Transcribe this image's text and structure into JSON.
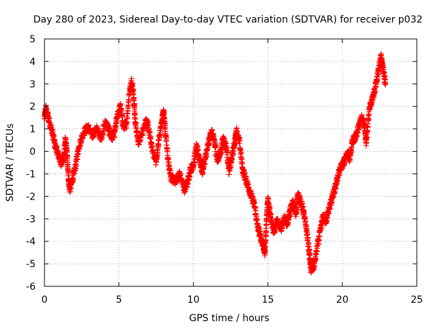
{
  "chart_data": {
    "type": "scatter",
    "title": "Day 280 of 2023, Sidereal Day-to-day VTEC variation (SDTVAR) for receiver p032",
    "xlabel": "GPS time / hours",
    "ylabel": "SDTVAR / TECUs",
    "xlim": [
      0,
      25
    ],
    "ylim": [
      -6,
      5
    ],
    "xticks": [
      0,
      5,
      10,
      15,
      20,
      25
    ],
    "yticks": [
      -6,
      -5,
      -4,
      -3,
      -2,
      -1,
      0,
      1,
      2,
      3,
      4,
      5
    ],
    "grid": true,
    "marker": "+",
    "series": [
      {
        "name": "SDTVAR",
        "color": "#ff0000",
        "trace_anchors": [
          [
            0.0,
            1.5
          ],
          [
            0.1,
            1.9
          ],
          [
            0.3,
            1.4
          ],
          [
            0.5,
            0.9
          ],
          [
            0.7,
            0.3
          ],
          [
            0.9,
            -0.1
          ],
          [
            1.1,
            -0.5
          ],
          [
            1.3,
            -0.3
          ],
          [
            1.4,
            0.5
          ],
          [
            1.5,
            0.0
          ],
          [
            1.6,
            -1.1
          ],
          [
            1.7,
            -1.7
          ],
          [
            1.9,
            -1.2
          ],
          [
            2.1,
            -0.6
          ],
          [
            2.3,
            0.2
          ],
          [
            2.6,
            0.8
          ],
          [
            2.9,
            1.1
          ],
          [
            3.2,
            0.7
          ],
          [
            3.5,
            1.0
          ],
          [
            3.8,
            0.6
          ],
          [
            4.1,
            1.3
          ],
          [
            4.3,
            1.0
          ],
          [
            4.5,
            0.6
          ],
          [
            4.7,
            0.8
          ],
          [
            4.9,
            1.6
          ],
          [
            5.1,
            2.0
          ],
          [
            5.3,
            1.1
          ],
          [
            5.5,
            1.2
          ],
          [
            5.7,
            2.6
          ],
          [
            5.85,
            3.1
          ],
          [
            6.0,
            2.4
          ],
          [
            6.1,
            1.3
          ],
          [
            6.3,
            0.4
          ],
          [
            6.5,
            0.7
          ],
          [
            6.8,
            1.4
          ],
          [
            7.0,
            1.0
          ],
          [
            7.2,
            0.2
          ],
          [
            7.5,
            -0.5
          ],
          [
            7.7,
            0.6
          ],
          [
            7.9,
            1.4
          ],
          [
            8.0,
            1.8
          ],
          [
            8.1,
            1.0
          ],
          [
            8.3,
            -0.4
          ],
          [
            8.5,
            -1.2
          ],
          [
            8.8,
            -1.3
          ],
          [
            9.1,
            -1.0
          ],
          [
            9.4,
            -1.7
          ],
          [
            9.6,
            -1.4
          ],
          [
            9.8,
            -0.8
          ],
          [
            10.0,
            -0.6
          ],
          [
            10.2,
            0.2
          ],
          [
            10.4,
            -0.3
          ],
          [
            10.6,
            -0.9
          ],
          [
            10.8,
            -0.3
          ],
          [
            11.0,
            0.3
          ],
          [
            11.2,
            0.9
          ],
          [
            11.4,
            0.5
          ],
          [
            11.6,
            -0.4
          ],
          [
            11.8,
            -0.1
          ],
          [
            12.0,
            0.6
          ],
          [
            12.2,
            0.2
          ],
          [
            12.4,
            -0.9
          ],
          [
            12.6,
            -0.2
          ],
          [
            12.8,
            0.5
          ],
          [
            12.9,
            0.9
          ],
          [
            13.1,
            0.4
          ],
          [
            13.3,
            -0.8
          ],
          [
            13.5,
            -1.2
          ],
          [
            13.7,
            -1.6
          ],
          [
            13.9,
            -2.0
          ],
          [
            14.1,
            -2.4
          ],
          [
            14.3,
            -3.3
          ],
          [
            14.5,
            -3.8
          ],
          [
            14.7,
            -4.2
          ],
          [
            14.8,
            -4.5
          ],
          [
            14.9,
            -3.2
          ],
          [
            15.0,
            -2.1
          ],
          [
            15.2,
            -2.9
          ],
          [
            15.4,
            -3.6
          ],
          [
            15.6,
            -3.1
          ],
          [
            15.9,
            -3.4
          ],
          [
            16.1,
            -3.0
          ],
          [
            16.3,
            -3.2
          ],
          [
            16.5,
            -2.6
          ],
          [
            16.7,
            -2.3
          ],
          [
            16.9,
            -2.8
          ],
          [
            17.0,
            -1.9
          ],
          [
            17.2,
            -2.2
          ],
          [
            17.4,
            -2.7
          ],
          [
            17.6,
            -3.5
          ],
          [
            17.8,
            -4.6
          ],
          [
            17.9,
            -5.3
          ],
          [
            18.1,
            -5.1
          ],
          [
            18.3,
            -4.3
          ],
          [
            18.5,
            -3.6
          ],
          [
            18.7,
            -2.9
          ],
          [
            18.9,
            -3.1
          ],
          [
            19.1,
            -2.6
          ],
          [
            19.3,
            -2.1
          ],
          [
            19.5,
            -1.7
          ],
          [
            19.7,
            -1.1
          ],
          [
            19.9,
            -0.7
          ],
          [
            20.1,
            -0.5
          ],
          [
            20.3,
            -0.1
          ],
          [
            20.5,
            -0.3
          ],
          [
            20.7,
            0.5
          ],
          [
            20.9,
            0.6
          ],
          [
            21.1,
            1.1
          ],
          [
            21.3,
            1.5
          ],
          [
            21.5,
            1.2
          ],
          [
            21.6,
            0.4
          ],
          [
            21.8,
            1.8
          ],
          [
            22.0,
            2.3
          ],
          [
            22.2,
            2.8
          ],
          [
            22.4,
            3.5
          ],
          [
            22.6,
            4.2
          ],
          [
            22.7,
            3.8
          ],
          [
            22.9,
            3.0
          ]
        ]
      }
    ]
  }
}
